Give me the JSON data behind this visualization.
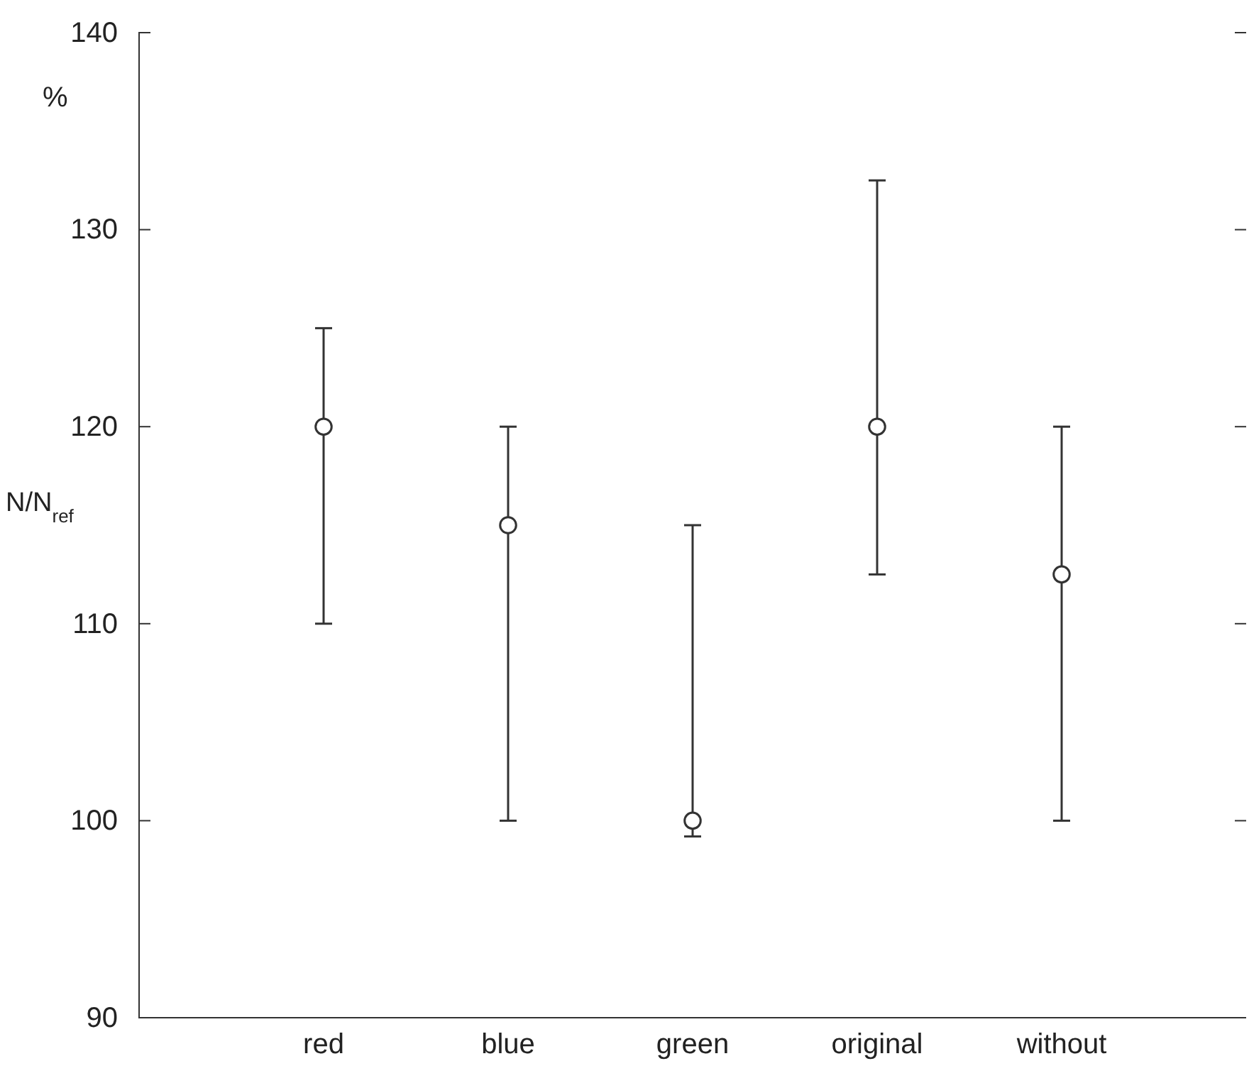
{
  "chart_data": {
    "type": "scatter",
    "ylabel": "N/N$_{ref}$",
    "annotations": [
      "%"
    ],
    "categories": [
      "red",
      "blue",
      "green",
      "original",
      "without"
    ],
    "values": [
      120,
      115,
      100,
      120,
      112.5
    ],
    "errors": [
      [
        110,
        125
      ],
      [
        100,
        120
      ],
      [
        99.2,
        115
      ],
      [
        112.5,
        132.5
      ],
      [
        100,
        120
      ]
    ],
    "color": "#333333",
    "marker": "circle",
    "ylim": [
      90,
      140
    ],
    "yticks": [
      90,
      100,
      110,
      120,
      130,
      140
    ],
    "grid": false
  }
}
